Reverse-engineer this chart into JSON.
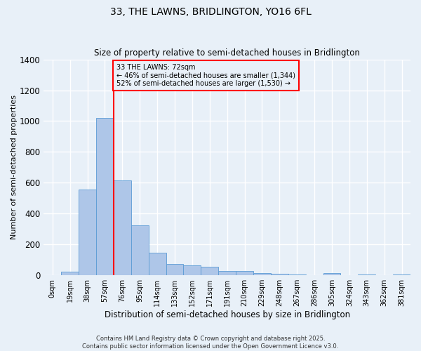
{
  "title": "33, THE LAWNS, BRIDLINGTON, YO16 6FL",
  "subtitle": "Size of property relative to semi-detached houses in Bridlington",
  "xlabel": "Distribution of semi-detached houses by size in Bridlington",
  "ylabel": "Number of semi-detached properties",
  "bin_labels": [
    "0sqm",
    "19sqm",
    "38sqm",
    "57sqm",
    "76sqm",
    "95sqm",
    "114sqm",
    "133sqm",
    "152sqm",
    "171sqm",
    "191sqm",
    "210sqm",
    "229sqm",
    "248sqm",
    "267sqm",
    "286sqm",
    "305sqm",
    "324sqm",
    "343sqm",
    "362sqm",
    "381sqm"
  ],
  "bar_values": [
    0,
    25,
    555,
    1020,
    615,
    325,
    148,
    75,
    65,
    55,
    30,
    30,
    15,
    12,
    5,
    0,
    15,
    0,
    5,
    0,
    5
  ],
  "bar_color": "#aec6e8",
  "bar_edge_color": "#5b9bd5",
  "vline_color": "red",
  "property_label": "33 THE LAWNS: 72sqm",
  "smaller_text": "← 46% of semi-detached houses are smaller (1,344)",
  "larger_text": "52% of semi-detached houses are larger (1,530) →",
  "annotation_box_color": "red",
  "ylim": [
    0,
    1400
  ],
  "yticks": [
    0,
    200,
    400,
    600,
    800,
    1000,
    1200,
    1400
  ],
  "bg_color": "#e8f0f8",
  "grid_color": "white",
  "footnote_line1": "Contains HM Land Registry data © Crown copyright and database right 2025.",
  "footnote_line2": "Contains public sector information licensed under the Open Government Licence v3.0."
}
